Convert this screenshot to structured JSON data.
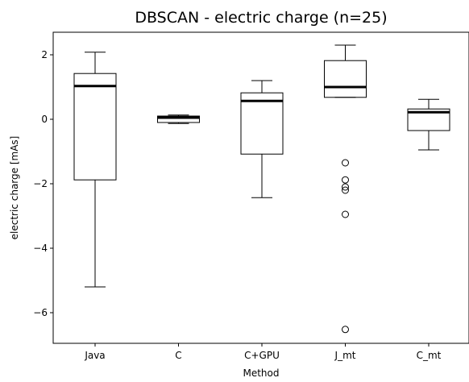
{
  "chart_data": {
    "type": "box",
    "title": "DBSCAN - electric charge (n=25)",
    "xlabel": "Method",
    "ylabel": "electric charge [mAs]",
    "categories": [
      "Java",
      "C",
      "C+GPU",
      "J_mt",
      "C_mt"
    ],
    "ylim": [
      -6.95,
      2.7
    ],
    "yticks": [
      2,
      0,
      -2,
      -4,
      -6
    ],
    "ytick_labels": [
      "2",
      "0",
      "−2",
      "−4",
      "−6"
    ],
    "grid": false,
    "boxes": [
      {
        "category": "Java",
        "whisker_low": -5.2,
        "q1": -1.88,
        "median": 1.03,
        "q3": 1.42,
        "whisker_high": 2.08,
        "outliers": []
      },
      {
        "category": "C",
        "whisker_low": -0.13,
        "q1": -0.1,
        "median": 0.05,
        "q3": 0.1,
        "whisker_high": 0.13,
        "outliers": []
      },
      {
        "category": "C+GPU",
        "whisker_low": -2.43,
        "q1": -1.08,
        "median": 0.57,
        "q3": 0.82,
        "whisker_high": 1.2,
        "outliers": []
      },
      {
        "category": "J_mt",
        "whisker_low": 0.68,
        "q1": 0.68,
        "median": 1.0,
        "q3": 1.82,
        "whisker_high": 2.3,
        "outliers": [
          -1.35,
          -1.88,
          -2.1,
          -2.2,
          -2.95,
          -6.52
        ]
      },
      {
        "category": "C_mt",
        "whisker_low": -0.95,
        "q1": -0.35,
        "median": 0.22,
        "q3": 0.32,
        "whisker_high": 0.62,
        "outliers": []
      }
    ]
  }
}
